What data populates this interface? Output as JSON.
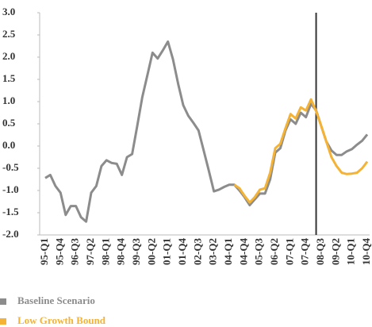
{
  "chart_data": {
    "type": "line",
    "categories": [
      "95-Q1",
      null,
      null,
      "95-Q4",
      null,
      null,
      "96-Q3",
      null,
      null,
      "97-Q2",
      null,
      null,
      "98-Q1",
      null,
      null,
      "98-Q4",
      null,
      null,
      "99-Q3",
      null,
      null,
      "00-Q2",
      null,
      null,
      "01-Q1",
      null,
      null,
      "01-Q4",
      null,
      null,
      "02-Q3",
      null,
      null,
      "03-Q2",
      null,
      null,
      "04-Q1",
      null,
      null,
      "04-Q4",
      null,
      null,
      "05-Q3",
      null,
      null,
      "06-Q2",
      null,
      null,
      "07-Q1",
      null,
      null,
      "07-Q4",
      null,
      null,
      "08-Q3",
      null,
      null,
      "09-Q2",
      null,
      null,
      "10-Q1",
      null,
      null,
      "10-Q4"
    ],
    "series": [
      {
        "name": "Baseline Scenario",
        "color": "#8c8c8c",
        "values": [
          -0.72,
          -0.65,
          -0.9,
          -1.05,
          -1.55,
          -1.35,
          -1.35,
          -1.6,
          -1.7,
          -1.05,
          -0.9,
          -0.45,
          -0.32,
          -0.38,
          -0.4,
          -0.65,
          -0.25,
          -0.18,
          0.45,
          1.1,
          1.6,
          2.1,
          1.97,
          2.15,
          2.35,
          1.95,
          1.4,
          0.92,
          0.68,
          0.52,
          0.35,
          -0.1,
          -0.55,
          -1.02,
          -0.98,
          -0.92,
          -0.87,
          -0.87,
          -1.0,
          -1.15,
          -1.33,
          -1.2,
          -1.07,
          -1.07,
          -0.75,
          -0.15,
          -0.05,
          0.35,
          0.6,
          0.5,
          0.75,
          0.65,
          0.95,
          0.8,
          0.45,
          0.1,
          -0.1,
          -0.2,
          -0.2,
          -0.12,
          -0.07,
          0.03,
          0.12,
          0.26
        ]
      },
      {
        "name": "Low Growth Bound",
        "color": "#f5b335",
        "values": [
          null,
          null,
          null,
          null,
          null,
          null,
          null,
          null,
          null,
          null,
          null,
          null,
          null,
          null,
          null,
          null,
          null,
          null,
          null,
          null,
          null,
          null,
          null,
          null,
          null,
          null,
          null,
          null,
          null,
          null,
          null,
          null,
          null,
          null,
          null,
          null,
          null,
          -0.87,
          -0.95,
          -1.12,
          -1.27,
          -1.15,
          -0.98,
          -0.95,
          -0.6,
          -0.05,
          0.05,
          0.4,
          0.72,
          0.62,
          0.87,
          0.8,
          1.05,
          0.78,
          0.45,
          0.1,
          -0.25,
          -0.45,
          -0.6,
          -0.63,
          -0.62,
          -0.6,
          -0.5,
          -0.35
        ]
      }
    ],
    "ylim": [
      -2.0,
      3.0
    ],
    "yticks": [
      {
        "value": 3.0,
        "label": "3.0"
      },
      2.5,
      {
        "value": 2.0,
        "label": "2.0"
      },
      1.5,
      {
        "value": 1.0,
        "label": "1.0"
      },
      0.5,
      {
        "value": 0.0,
        "label": "0.0"
      },
      -0.5,
      {
        "value": -1.0,
        "label": "-1.0"
      },
      -1.5,
      {
        "value": -2.0,
        "label": "-2.0"
      }
    ],
    "vertical_line_index": 53,
    "grid": false
  }
}
